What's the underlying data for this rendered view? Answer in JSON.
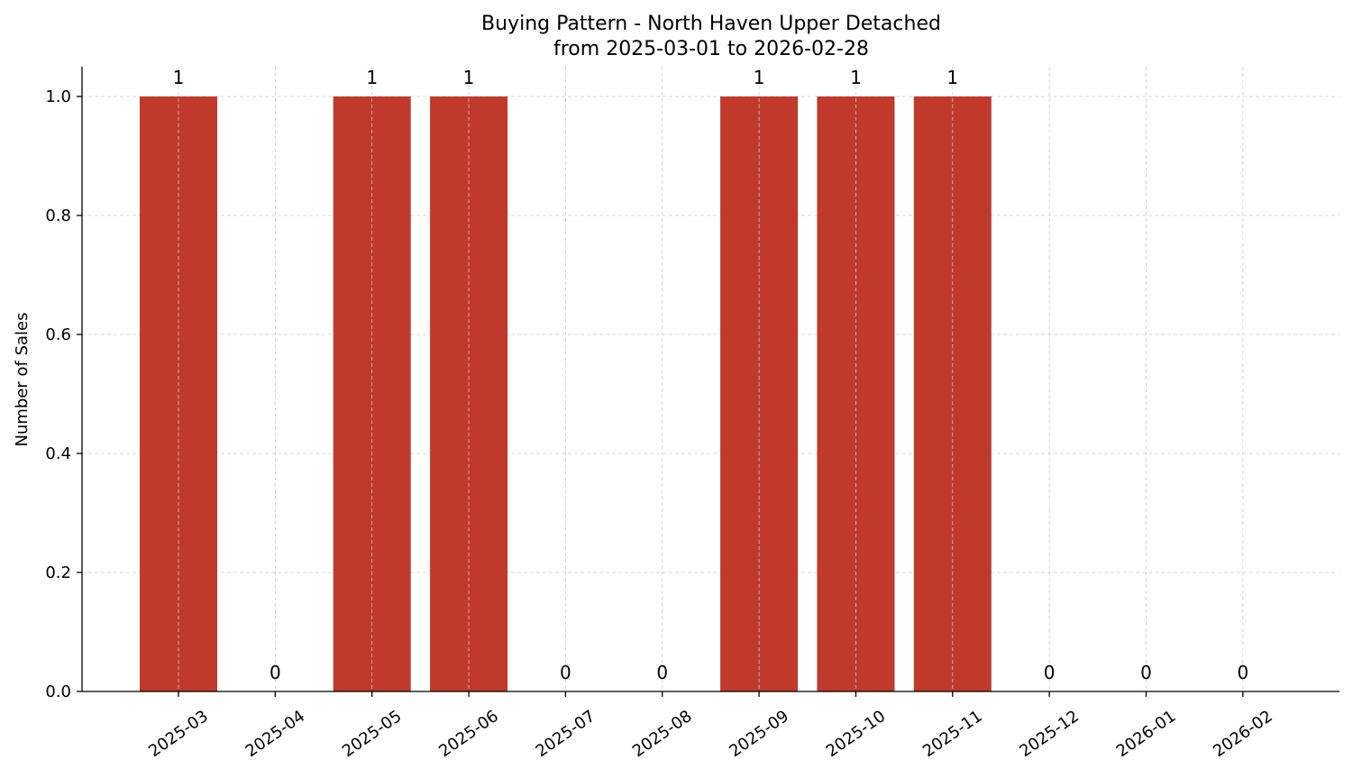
{
  "chart_data": {
    "type": "bar",
    "title": "Buying Pattern - North Haven Upper Detached",
    "subtitle": "from 2025-03-01 to 2026-02-28",
    "xlabel": "",
    "ylabel": "Number of Sales",
    "categories": [
      "2025-03",
      "2025-04",
      "2025-05",
      "2025-06",
      "2025-07",
      "2025-08",
      "2025-09",
      "2025-10",
      "2025-11",
      "2025-12",
      "2026-01",
      "2026-02"
    ],
    "values": [
      1,
      0,
      1,
      1,
      0,
      0,
      1,
      1,
      1,
      0,
      0,
      0
    ],
    "data_labels": [
      "1",
      "0",
      "1",
      "1",
      "0",
      "0",
      "1",
      "1",
      "1",
      "0",
      "0",
      "0"
    ],
    "ylim": [
      0,
      1.05
    ],
    "yticks": [
      "0.0",
      "0.2",
      "0.4",
      "0.6",
      "0.8",
      "1.0"
    ],
    "ytick_values": [
      0,
      0.2,
      0.4,
      0.6,
      0.8,
      1.0
    ],
    "bar_color": "#c0392b",
    "grid": true
  }
}
